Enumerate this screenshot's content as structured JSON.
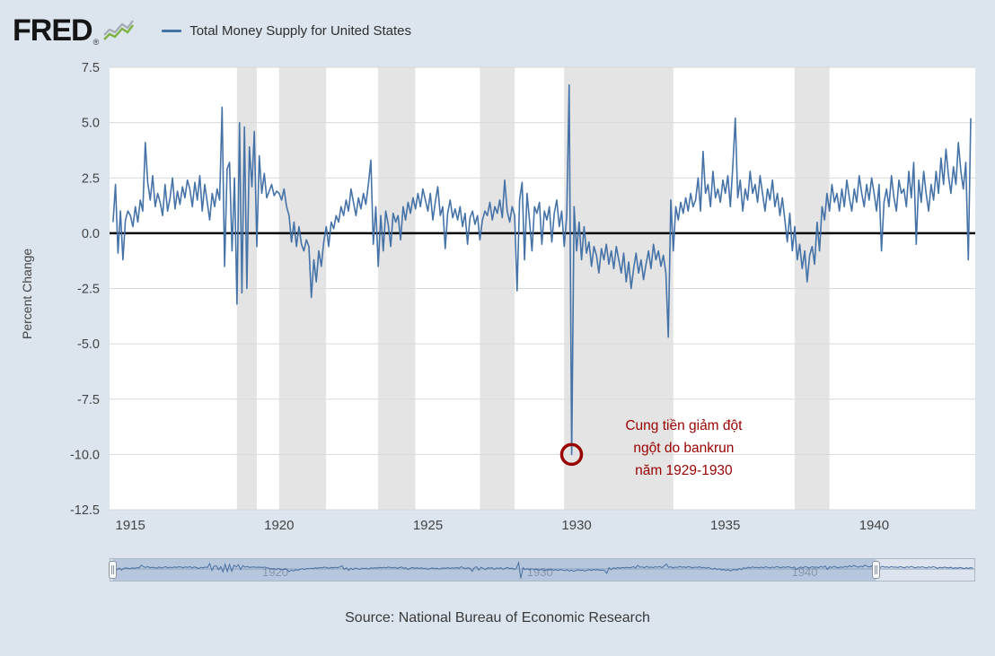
{
  "header": {
    "logo_text": "FRED",
    "registered_mark": "®",
    "legend_label": "Total Money Supply for United States",
    "legend_color": "#4572a7"
  },
  "chart_data": {
    "type": "line",
    "title": "Total Money Supply for United States",
    "series_name": "Total Money Supply for United States",
    "ylabel": "Percent Change",
    "xlabel": "",
    "line_color": "#4572a7",
    "grid": true,
    "zero_line": true,
    "ylim": [
      -12.5,
      7.5
    ],
    "y_tick_step": 2.5,
    "y_tick_labels": [
      "7.5",
      "5.0",
      "2.5",
      "0.0",
      "-2.5",
      "-5.0",
      "-7.5",
      "-10.0",
      "-12.5"
    ],
    "xlim": [
      1914.3,
      1943.4
    ],
    "x_ticks": [
      1915,
      1920,
      1925,
      1930,
      1935,
      1940
    ],
    "x_tick_labels": [
      "1915",
      "1920",
      "1925",
      "1930",
      "1935",
      "1940"
    ],
    "frequency": "monthly",
    "x_start": 1914.4167,
    "x_step": 0.083333,
    "values": [
      0.5,
      2.2,
      -0.9,
      1.0,
      -1.2,
      0.6,
      1.0,
      0.8,
      0.3,
      1.2,
      0.5,
      1.5,
      1.0,
      4.1,
      2.3,
      1.5,
      2.6,
      1.2,
      1.8,
      1.4,
      0.8,
      2.2,
      1.0,
      1.6,
      2.5,
      1.1,
      1.9,
      1.3,
      2.1,
      1.6,
      2.4,
      2.0,
      1.2,
      2.3,
      1.5,
      2.6,
      1.0,
      2.2,
      1.4,
      0.6,
      1.8,
      1.2,
      2.0,
      1.5,
      5.7,
      -1.5,
      2.9,
      3.2,
      -0.8,
      2.5,
      -3.2,
      5.0,
      -2.7,
      4.8,
      -2.5,
      3.9,
      2.1,
      4.6,
      -0.6,
      3.5,
      1.8,
      2.7,
      1.6,
      1.9,
      2.2,
      1.7,
      1.9,
      1.8,
      1.5,
      2.0,
      1.2,
      0.8,
      -0.4,
      0.5,
      -0.6,
      0.3,
      -0.5,
      -0.8,
      -0.3,
      -0.6,
      -2.9,
      -1.2,
      -2.2,
      -0.8,
      -1.5,
      -0.4,
      0.3,
      -0.6,
      0.5,
      0.2,
      0.8,
      0.5,
      1.2,
      0.8,
      1.5,
      1.0,
      2.0,
      1.4,
      0.8,
      1.6,
      1.1,
      1.8,
      1.3,
      2.2,
      3.3,
      -0.5,
      1.2,
      -1.5,
      0.8,
      -0.8,
      1.0,
      0.4,
      -0.6,
      0.9,
      0.5,
      0.8,
      -0.3,
      1.2,
      0.6,
      1.4,
      0.9,
      1.6,
      1.1,
      1.8,
      1.2,
      2.0,
      1.5,
      1.0,
      1.8,
      0.6,
      1.4,
      2.1,
      0.8,
      1.2,
      -0.7,
      0.9,
      1.5,
      0.7,
      1.1,
      0.6,
      1.2,
      0.3,
      0.9,
      -0.5,
      0.7,
      1.0,
      0.4,
      0.8,
      -0.3,
      0.6,
      1.0,
      0.8,
      1.4,
      0.6,
      1.2,
      0.9,
      1.5,
      0.7,
      2.4,
      1.0,
      0.5,
      1.2,
      0.8,
      -2.6,
      1.5,
      2.3,
      -1.2,
      1.8,
      0.6,
      -0.8,
      1.2,
      0.9,
      1.4,
      -0.5,
      1.0,
      0.6,
      1.2,
      -0.4,
      0.9,
      1.5,
      0.3,
      1.0,
      -0.6,
      0.8,
      6.7,
      -10.0,
      1.2,
      -0.8,
      0.5,
      -1.2,
      0.3,
      -0.9,
      -0.4,
      -1.5,
      -0.6,
      -1.0,
      -1.8,
      -0.7,
      -1.2,
      -0.5,
      -1.4,
      -0.8,
      -1.6,
      -0.6,
      -1.2,
      -1.8,
      -0.9,
      -2.2,
      -1.3,
      -2.5,
      -1.6,
      -0.9,
      -1.8,
      -1.2,
      -2.1,
      -1.4,
      -0.8,
      -1.6,
      -0.5,
      -1.2,
      -0.8,
      -1.5,
      -1.0,
      -1.8,
      -4.7,
      1.5,
      -0.8,
      1.2,
      0.6,
      1.4,
      0.9,
      1.6,
      1.0,
      1.8,
      1.2,
      1.5,
      2.5,
      1.0,
      3.7,
      1.8,
      2.2,
      1.2,
      2.8,
      1.6,
      2.0,
      1.4,
      2.4,
      1.8,
      2.6,
      1.2,
      3.0,
      5.2,
      1.6,
      2.4,
      1.0,
      2.0,
      1.5,
      2.8,
      1.8,
      2.2,
      1.4,
      2.6,
      1.8,
      1.0,
      2.0,
      1.5,
      2.4,
      1.2,
      1.8,
      0.8,
      1.6,
      0.6,
      -0.4,
      0.9,
      -0.8,
      0.3,
      -1.2,
      -0.5,
      -1.6,
      -0.8,
      -2.2,
      -1.0,
      -0.6,
      -1.4,
      0.5,
      -0.8,
      1.2,
      0.6,
      1.8,
      1.0,
      2.2,
      1.4,
      1.8,
      1.0,
      2.0,
      1.2,
      2.4,
      1.6,
      1.0,
      2.0,
      1.4,
      2.6,
      1.8,
      1.2,
      2.2,
      1.5,
      2.5,
      1.8,
      1.0,
      2.2,
      -0.8,
      1.4,
      2.0,
      1.2,
      2.6,
      1.6,
      1.0,
      2.4,
      1.8,
      2.0,
      1.2,
      2.8,
      1.6,
      3.2,
      -0.5,
      2.4,
      1.4,
      2.8,
      1.8,
      1.0,
      2.2,
      1.5,
      2.8,
      1.8,
      3.4,
      2.2,
      3.8,
      2.6,
      1.8,
      3.0,
      2.2,
      4.1,
      2.8,
      2.0,
      3.2,
      -1.2,
      5.2
    ],
    "recession_bands": [
      [
        1918.58,
        1919.25
      ],
      [
        1920.0,
        1921.58
      ],
      [
        1923.33,
        1924.58
      ],
      [
        1926.75,
        1927.92
      ],
      [
        1929.58,
        1933.25
      ],
      [
        1937.33,
        1938.5
      ]
    ],
    "recession_band_color": "#e4e4e4",
    "annotation": {
      "circle_x": 1929.83,
      "circle_y": -10.0,
      "color": "#990000",
      "text_x": 1933.6,
      "text_y": -9.9,
      "text_lines": [
        "Cung tiền giảm đột",
        "ngột do bankrun",
        "năm 1929-1930"
      ]
    }
  },
  "slider": {
    "xlim": [
      1914.3,
      1947.0
    ],
    "window": [
      1914.4167,
      1943.25
    ],
    "ticks": [
      1920,
      1930,
      1940
    ],
    "tick_labels": [
      "1920",
      "1930",
      "1940"
    ],
    "selection_color": "#b6c7dd",
    "line_color": "#4a6fa0",
    "tail_values": [
      2.4,
      1.6,
      2.8,
      1.8,
      2.2,
      1.4,
      2.6,
      1.8,
      2.0,
      1.4,
      2.6,
      1.8,
      1.2,
      2.4,
      1.6,
      2.8,
      1.8,
      1.2,
      2.2,
      1.6,
      2.4,
      1.6,
      1.0,
      2.2,
      1.4,
      2.6,
      1.6,
      0.8,
      1.8,
      1.2,
      2.0,
      1.4,
      1.0,
      1.8,
      0.6,
      1.4,
      0.8,
      1.6,
      1.0,
      0.4,
      1.2,
      0.6,
      1.4,
      0.8
    ]
  },
  "footer": {
    "source_text": "Source: National Bureau of Economic Research"
  }
}
